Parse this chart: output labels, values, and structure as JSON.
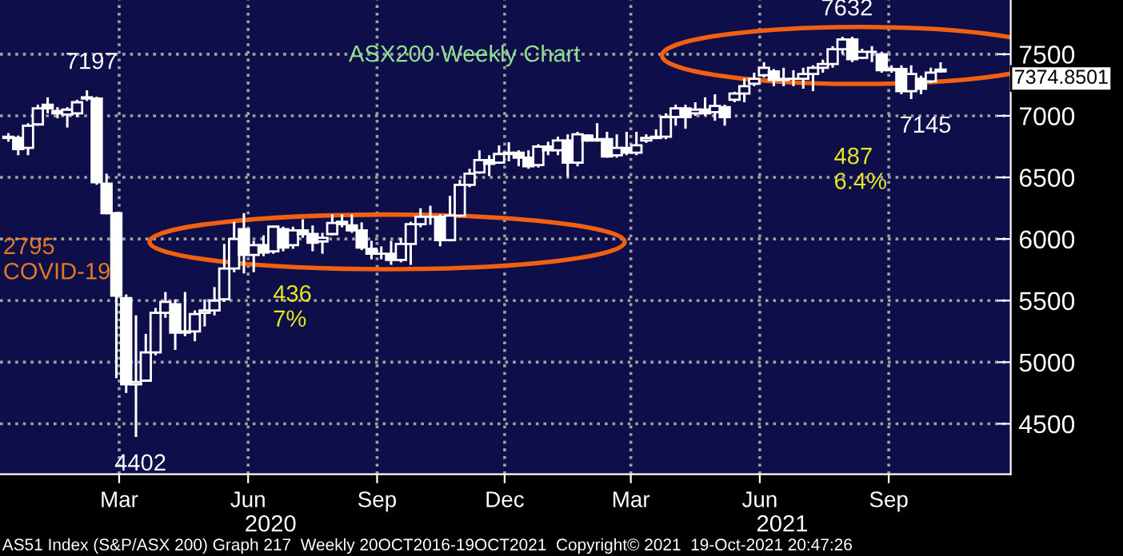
{
  "chart_data": {
    "type": "candlestick",
    "title": "ASX200 Weekly Chart",
    "x": [
      "2019-12-27",
      "2020-01-03",
      "2020-01-10",
      "2020-01-17",
      "2020-01-24",
      "2020-01-31",
      "2020-02-07",
      "2020-02-14",
      "2020-02-21",
      "2020-02-28",
      "2020-03-06",
      "2020-03-13",
      "2020-03-20",
      "2020-03-27",
      "2020-04-03",
      "2020-04-10",
      "2020-04-17",
      "2020-04-24",
      "2020-05-01",
      "2020-05-08",
      "2020-05-15",
      "2020-05-22",
      "2020-05-29",
      "2020-06-05",
      "2020-06-12",
      "2020-06-19",
      "2020-06-26",
      "2020-07-03",
      "2020-07-10",
      "2020-07-17",
      "2020-07-24",
      "2020-07-31",
      "2020-08-07",
      "2020-08-14",
      "2020-08-21",
      "2020-08-28",
      "2020-09-04",
      "2020-09-11",
      "2020-09-18",
      "2020-09-25",
      "2020-10-02",
      "2020-10-09",
      "2020-10-16",
      "2020-10-23",
      "2020-10-30",
      "2020-11-06",
      "2020-11-13",
      "2020-11-20",
      "2020-11-27",
      "2020-12-04",
      "2020-12-11",
      "2020-12-18",
      "2020-12-25",
      "2021-01-01",
      "2021-01-08",
      "2021-01-15",
      "2021-01-22",
      "2021-01-29",
      "2021-02-05",
      "2021-02-12",
      "2021-02-19",
      "2021-02-26",
      "2021-03-05",
      "2021-03-12",
      "2021-03-19",
      "2021-03-26",
      "2021-04-02",
      "2021-04-09",
      "2021-04-16",
      "2021-04-23",
      "2021-04-30",
      "2021-05-07",
      "2021-05-14",
      "2021-05-21",
      "2021-05-28",
      "2021-06-04",
      "2021-06-11",
      "2021-06-18",
      "2021-06-25",
      "2021-07-02",
      "2021-07-09",
      "2021-07-16",
      "2021-07-23",
      "2021-07-30",
      "2021-08-06",
      "2021-08-13",
      "2021-08-20",
      "2021-08-27",
      "2021-09-03",
      "2021-09-10",
      "2021-09-17",
      "2021-09-24",
      "2021-10-01",
      "2021-10-08",
      "2021-10-15",
      "2021-10-22"
    ],
    "ohlc": [
      [
        6830,
        6850,
        6800,
        6820
      ],
      [
        6820,
        6830,
        6690,
        6730
      ],
      [
        6740,
        6930,
        6690,
        6920
      ],
      [
        6930,
        7080,
        6930,
        7060
      ],
      [
        7090,
        7140,
        7030,
        7060
      ],
      [
        7040,
        7060,
        6990,
        7020
      ],
      [
        7010,
        7060,
        6915,
        7050
      ],
      [
        7020,
        7120,
        7000,
        7110
      ],
      [
        7150,
        7197,
        7130,
        7140
      ],
      [
        7140,
        7145,
        6450,
        6460
      ],
      [
        6450,
        6520,
        6210,
        6210
      ],
      [
        6210,
        6210,
        4880,
        5540
      ],
      [
        5520,
        5540,
        4760,
        4820
      ],
      [
        4820,
        5370,
        4402,
        4840
      ],
      [
        4850,
        5220,
        4850,
        5080
      ],
      [
        5080,
        5430,
        5065,
        5400
      ],
      [
        5400,
        5560,
        5370,
        5490
      ],
      [
        5470,
        5500,
        5110,
        5240
      ],
      [
        5240,
        5560,
        5220,
        5250
      ],
      [
        5250,
        5410,
        5180,
        5390
      ],
      [
        5400,
        5500,
        5300,
        5420
      ],
      [
        5420,
        5600,
        5390,
        5500
      ],
      [
        5510,
        5950,
        5500,
        5760
      ],
      [
        5760,
        6130,
        5740,
        6000
      ],
      [
        6080,
        6200,
        5730,
        5870
      ],
      [
        5870,
        5975,
        5740,
        5950
      ],
      [
        5950,
        6020,
        5870,
        5890
      ],
      [
        5900,
        6100,
        5890,
        6100
      ],
      [
        6080,
        6090,
        5910,
        5930
      ],
      [
        5950,
        6090,
        5930,
        6070
      ],
      [
        6070,
        6150,
        6020,
        6040
      ],
      [
        6040,
        6100,
        5910,
        5970
      ],
      [
        5980,
        6040,
        5890,
        6010
      ],
      [
        6040,
        6190,
        6040,
        6130
      ],
      [
        6140,
        6190,
        6105,
        6120
      ],
      [
        6110,
        6190,
        6060,
        6070
      ],
      [
        6070,
        6125,
        5920,
        5930
      ],
      [
        5920,
        5975,
        5845,
        5880
      ],
      [
        5880,
        5930,
        5845,
        5880
      ],
      [
        5880,
        5975,
        5800,
        5830
      ],
      [
        5830,
        6000,
        5820,
        5960
      ],
      [
        5960,
        6130,
        5800,
        6120
      ],
      [
        6120,
        6240,
        6105,
        6180
      ],
      [
        6180,
        6260,
        6125,
        6180
      ],
      [
        6180,
        6190,
        5950,
        5990
      ],
      [
        5990,
        6340,
        5990,
        6190
      ],
      [
        6190,
        6470,
        6190,
        6440
      ],
      [
        6440,
        6560,
        6430,
        6530
      ],
      [
        6540,
        6710,
        6540,
        6640
      ],
      [
        6640,
        6670,
        6520,
        6610
      ],
      [
        6620,
        6750,
        6620,
        6690
      ],
      [
        6690,
        6775,
        6640,
        6700
      ],
      [
        6700,
        6710,
        6600,
        6660
      ],
      [
        6660,
        6710,
        6580,
        6590
      ],
      [
        6600,
        6760,
        6590,
        6750
      ],
      [
        6750,
        6780,
        6690,
        6720
      ],
      [
        6720,
        6820,
        6690,
        6800
      ],
      [
        6800,
        6840,
        6515,
        6620
      ],
      [
        6620,
        6860,
        6600,
        6850
      ],
      [
        6840,
        6840,
        6800,
        6800
      ],
      [
        6800,
        6930,
        6800,
        6810
      ],
      [
        6810,
        6860,
        6670,
        6670
      ],
      [
        6680,
        6840,
        6670,
        6740
      ],
      [
        6740,
        6860,
        6690,
        6700
      ],
      [
        6700,
        6860,
        6690,
        6760
      ],
      [
        6800,
        6840,
        6790,
        6820
      ],
      [
        6820,
        6880,
        6820,
        6830
      ],
      [
        6830,
        7010,
        6820,
        6990
      ],
      [
        6990,
        7080,
        6930,
        7060
      ],
      [
        7060,
        7080,
        6905,
        6990
      ],
      [
        7020,
        7100,
        7010,
        7050
      ],
      [
        7050,
        7140,
        7010,
        7020
      ],
      [
        7030,
        7165,
        6970,
        7080
      ],
      [
        7070,
        7080,
        6930,
        6990
      ],
      [
        7130,
        7185,
        7120,
        7180
      ],
      [
        7180,
        7295,
        7120,
        7240
      ],
      [
        7260,
        7340,
        7250,
        7300
      ],
      [
        7330,
        7425,
        7320,
        7390
      ],
      [
        7360,
        7370,
        7250,
        7290
      ],
      [
        7290,
        7380,
        7250,
        7300
      ],
      [
        7300,
        7360,
        7250,
        7300
      ],
      [
        7300,
        7380,
        7230,
        7340
      ],
      [
        7340,
        7400,
        7210,
        7390
      ],
      [
        7390,
        7445,
        7360,
        7420
      ],
      [
        7420,
        7555,
        7400,
        7540
      ],
      [
        7540,
        7632,
        7510,
        7620
      ],
      [
        7620,
        7632,
        7445,
        7460
      ],
      [
        7470,
        7535,
        7470,
        7520
      ],
      [
        7520,
        7555,
        7445,
        7520
      ],
      [
        7500,
        7510,
        7360,
        7370
      ],
      [
        7370,
        7400,
        7360,
        7380
      ],
      [
        7380,
        7400,
        7185,
        7200
      ],
      [
        7200,
        7400,
        7145,
        7340
      ],
      [
        7300,
        7315,
        7185,
        7220
      ],
      [
        7280,
        7380,
        7275,
        7350
      ],
      [
        7360,
        7425,
        7360,
        7375
      ]
    ],
    "color": "#ffffff",
    "xlim": [
      "2019-12-21",
      "2021-12-11"
    ],
    "xticks": [
      {
        "value": "2020-03-15",
        "label": "Mar"
      },
      {
        "value": "2020-06-15",
        "label": "Jun"
      },
      {
        "value": "2020-09-15",
        "label": "Sep"
      },
      {
        "value": "2020-12-15",
        "label": "Dec"
      },
      {
        "value": "2021-03-15",
        "label": "Mar"
      },
      {
        "value": "2021-06-15",
        "label": "Jun"
      },
      {
        "value": "2021-09-15",
        "label": "Sep"
      }
    ],
    "x2lim": [
      "2019-12-21",
      "2021-12-11"
    ],
    "x2ticks": [
      {
        "value": "2020-07-01",
        "label": "2020"
      },
      {
        "value": "2021-07-01",
        "label": "2021"
      }
    ],
    "ylim": [
      4090,
      7940
    ],
    "yticks": [
      4500,
      5000,
      5500,
      6000,
      6500,
      7000,
      7500
    ],
    "grid": true,
    "annotations": [
      {
        "text": "7197",
        "x": "2020-02-21",
        "y": 7197
      },
      {
        "text": "4402",
        "x": "2020-03-27",
        "y": 4402
      },
      {
        "text": "7632",
        "x": "2021-08-13",
        "y": 7632
      },
      {
        "text": "7145",
        "x": "2021-10-08",
        "y": 7145
      },
      "7374.8501",
      "2795\nCOVID-19",
      "436\n7%",
      "487\n6.4%",
      "AS51 Index (S&P/ASX 200) Graph 217  Weekly 20OCT2016-19OCT2021  Copyright© 2021  19-Oct-2021 20:47:26"
    ]
  }
}
